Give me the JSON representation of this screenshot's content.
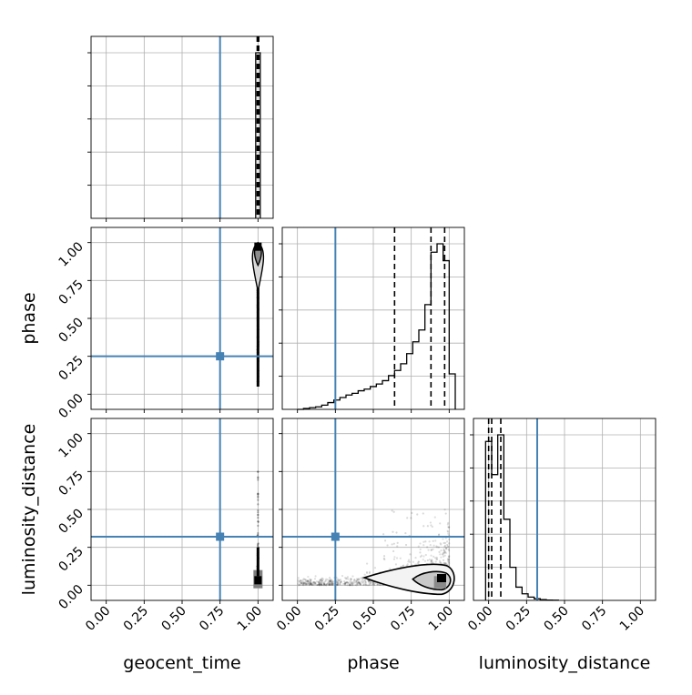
{
  "chart_data": {
    "type": "corner",
    "parameters": [
      "geocent_time",
      "phase",
      "luminosity_distance"
    ],
    "axis_labels": {
      "geocent_time": "geocent_time",
      "phase": "phase",
      "luminosity_distance": "luminosity_distance"
    },
    "ticks": [
      0.0,
      0.25,
      0.5,
      0.75,
      1.0
    ],
    "tick_labels": [
      "0.00",
      "0.25",
      "0.50",
      "0.75",
      "1.00"
    ],
    "range": [
      -0.1,
      1.1
    ],
    "truths": {
      "geocent_time": 0.75,
      "phase": 0.25,
      "luminosity_distance": 0.32
    },
    "truth_color": "#4682b4",
    "grid": true,
    "histograms": {
      "geocent_time": {
        "edges": [
          0.985,
          1.0,
          1.015
        ],
        "heights": [
          1.0,
          1.0
        ],
        "quantiles": [
          0.995,
          1.0,
          1.005
        ]
      },
      "phase": {
        "edges": [
          0.0,
          0.04,
          0.08,
          0.12,
          0.16,
          0.2,
          0.24,
          0.28,
          0.32,
          0.36,
          0.4,
          0.44,
          0.48,
          0.52,
          0.56,
          0.6,
          0.64,
          0.68,
          0.72,
          0.76,
          0.8,
          0.84,
          0.88,
          0.92,
          0.96,
          1.0,
          1.04
        ],
        "heights": [
          0.0,
          0.005,
          0.01,
          0.015,
          0.025,
          0.04,
          0.055,
          0.07,
          0.085,
          0.095,
          0.11,
          0.12,
          0.135,
          0.15,
          0.17,
          0.2,
          0.23,
          0.27,
          0.33,
          0.4,
          0.47,
          0.62,
          0.93,
          0.98,
          0.88,
          0.21
        ],
        "quantiles": [
          0.64,
          0.88,
          0.97
        ]
      },
      "luminosity_distance": {
        "edges": [
          -0.02,
          0.02,
          0.06,
          0.1,
          0.14,
          0.18,
          0.22,
          0.26,
          0.3,
          0.34,
          0.38,
          0.42,
          0.46
        ],
        "heights": [
          0.96,
          0.76,
          1.0,
          0.49,
          0.2,
          0.08,
          0.04,
          0.02,
          0.01,
          0.005,
          0.002,
          0.001
        ],
        "quantiles": [
          0.0,
          0.02,
          0.08
        ]
      }
    }
  }
}
